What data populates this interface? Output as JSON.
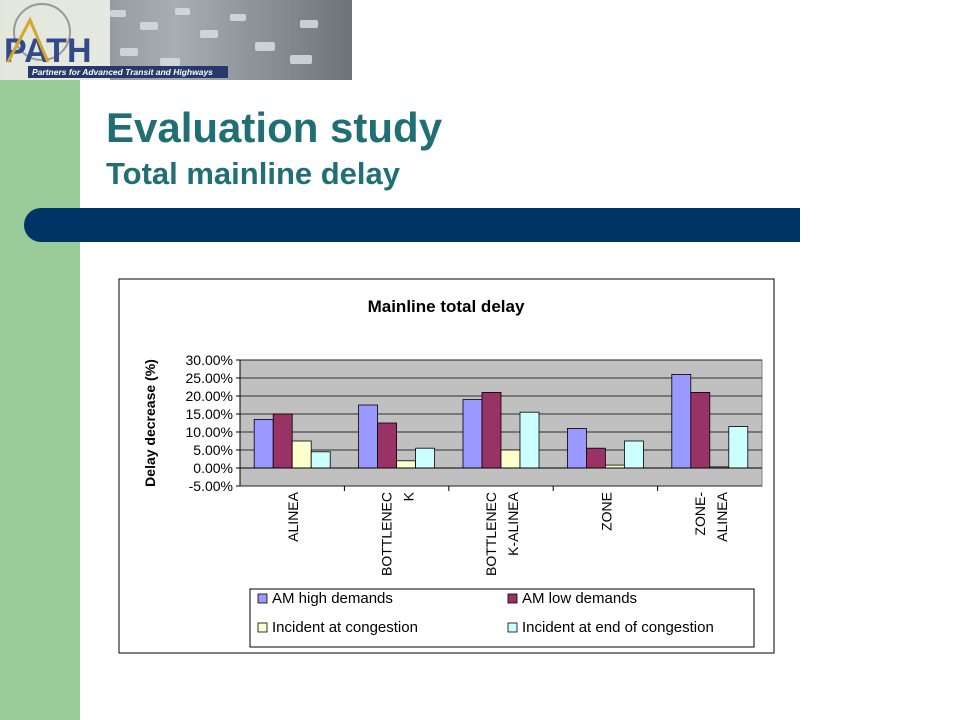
{
  "slide": {
    "title": "Evaluation study",
    "subtitle": "Total mainline delay",
    "logo_text": "PATH",
    "logo_tagline": "Partners for Advanced Transit and Highways",
    "colors": {
      "title": "#1f6f74",
      "bar": "#003366",
      "side": "#99cc99"
    }
  },
  "chart_data": {
    "type": "bar",
    "title": "Mainline total delay",
    "ylabel": "Delay decrease (%)",
    "categories": [
      [
        "ALINEA"
      ],
      [
        "BOTTLENEC",
        "K"
      ],
      [
        "BOTTLENEC",
        "K-ALINEA"
      ],
      [
        "ZONE"
      ],
      [
        "ZONE-",
        "ALINEA"
      ]
    ],
    "yticks": [
      "30.00%",
      "25.00%",
      "20.00%",
      "15.00%",
      "10.00%",
      "5.00%",
      "0.00%",
      "-5.00%"
    ],
    "ylim": [
      -5,
      30
    ],
    "grid": true,
    "legend_position": "bottom",
    "series": [
      {
        "name": "AM high demands",
        "color": "#9999ff",
        "values": [
          13.5,
          17.5,
          19,
          11,
          26
        ]
      },
      {
        "name": "AM low demands",
        "color": "#993366",
        "values": [
          15,
          12.5,
          21,
          5.5,
          21
        ]
      },
      {
        "name": "Incident at congestion",
        "color": "#ffffcc",
        "values": [
          7.5,
          2,
          5,
          0.8,
          0.3
        ]
      },
      {
        "name": "Incident at end of congestion",
        "color": "#ccffff",
        "values": [
          4.5,
          5.5,
          15.5,
          7.5,
          11.5
        ]
      }
    ]
  }
}
